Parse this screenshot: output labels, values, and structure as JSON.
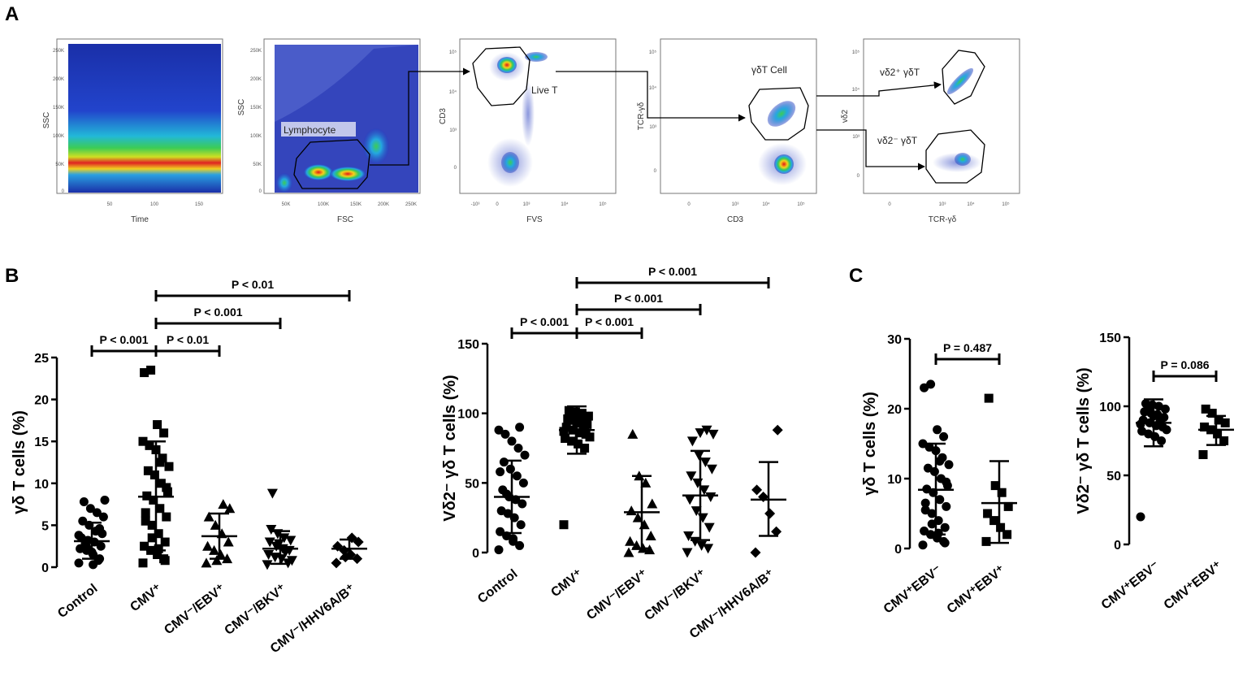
{
  "panel_labels": {
    "a": "A",
    "b": "B",
    "c": "C"
  },
  "flow_plots": [
    {
      "xlabel": "Time",
      "ylabel": "SSC",
      "xticks": [
        "50",
        "100",
        "150"
      ],
      "yticks": [
        "250K",
        "200K",
        "150K",
        "100K",
        "50K",
        "0"
      ]
    },
    {
      "xlabel": "FSC",
      "ylabel": "SSC",
      "xticks": [
        "50K",
        "100K",
        "150K",
        "200K",
        "250K"
      ],
      "yticks": [
        "250K",
        "200K",
        "150K",
        "100K",
        "50K",
        "0"
      ],
      "gate": "Lymphocyte"
    },
    {
      "xlabel": "FVS",
      "ylabel": "CD3",
      "xticks": [
        "-10³",
        "0",
        "10³",
        "10⁴",
        "10⁵"
      ],
      "yticks": [
        "10⁵",
        "10⁴",
        "10³",
        "0"
      ],
      "gate": "Live T"
    },
    {
      "xlabel": "CD3",
      "ylabel": "TCR-γδ",
      "xticks": [
        "0",
        "10³",
        "10⁴",
        "10⁵"
      ],
      "yticks": [
        "10⁵",
        "10⁴",
        "10³",
        "0"
      ],
      "gate": "γδT Cell"
    },
    {
      "xlabel": "TCR-γδ",
      "ylabel": "vδ2",
      "xticks": [
        "0",
        "10³",
        "10⁴",
        "10⁵"
      ],
      "yticks": [
        "10⁵",
        "10⁴",
        "10³",
        "0"
      ],
      "gate_pos": "vδ2⁺ γδT",
      "gate_neg": "vδ2⁻ γδT"
    }
  ],
  "chart_data": [
    {
      "id": "B1",
      "type": "scatter",
      "ylabel": "γδ T cells (%)",
      "ylim": [
        0,
        25
      ],
      "yticks": [
        0,
        5,
        10,
        15,
        20,
        25
      ],
      "categories": [
        "Control",
        "CMV⁺",
        "CMV⁻/EBV⁺",
        "CMV⁻/BKV⁺",
        "CMV⁻/HHV6A/B⁺"
      ],
      "markers": [
        "circle",
        "square",
        "triangle",
        "tri-down",
        "diamond"
      ],
      "means": [
        3.1,
        8.4,
        3.7,
        2.2,
        2.2
      ],
      "sd_upper": [
        5.3,
        15.0,
        6.4,
        4.3,
        3.3
      ],
      "sd_lower": [
        1.0,
        2.0,
        1.0,
        0.4,
        1.0
      ],
      "points": [
        [
          0.5,
          1,
          1.5,
          2,
          2.2,
          2.5,
          3,
          3.2,
          3.5,
          4,
          4.3,
          5,
          5.5,
          6,
          6.5,
          7,
          7.8,
          8,
          0.8,
          1.8,
          2.8,
          3.8,
          4.6,
          0.3,
          2.4
        ],
        [
          0.5,
          1,
          1.5,
          2,
          2.5,
          3,
          4,
          5,
          5.5,
          6,
          7,
          8,
          8.5,
          9,
          10,
          11,
          11.5,
          12,
          13,
          14,
          14.5,
          15,
          16,
          17,
          23.5,
          23.2,
          0.8,
          2.2,
          3.5,
          6.5,
          9.5,
          12.5
        ],
        [
          0.5,
          1,
          1.5,
          2,
          2.5,
          3,
          4,
          5,
          6,
          7,
          7.5,
          0.8
        ],
        [
          0.3,
          0.5,
          1,
          1.2,
          1.5,
          2,
          2.2,
          2.5,
          3,
          3.2,
          3.5,
          4,
          4.5,
          0.8,
          1.8,
          2.8,
          8.8
        ],
        [
          0.5,
          1,
          1.5,
          2,
          2.5,
          3,
          3.5,
          1.2
        ]
      ],
      "comparisons": [
        {
          "from": 0,
          "to": 1,
          "label": "P < 0.001"
        },
        {
          "from": 1,
          "to": 2,
          "label": "P < 0.01"
        },
        {
          "from": 1,
          "to": 3,
          "label": "P < 0.001"
        },
        {
          "from": 1,
          "to": 4,
          "label": "P < 0.01"
        }
      ]
    },
    {
      "id": "B2",
      "type": "scatter",
      "ylabel": "Vδ2⁻ γδ T cells (%)",
      "ylim": [
        0,
        150
      ],
      "yticks": [
        0,
        50,
        100,
        150
      ],
      "categories": [
        "Control",
        "CMV⁺",
        "CMV⁻/EBV⁺",
        "CMV⁻/BKV⁺",
        "CMV⁻/HHV6A/B⁺"
      ],
      "markers": [
        "circle",
        "square",
        "triangle",
        "tri-down",
        "diamond"
      ],
      "means": [
        40,
        88,
        29,
        41,
        38
      ],
      "sd_upper": [
        66,
        105,
        55,
        73,
        65
      ],
      "sd_lower": [
        14,
        71,
        3,
        9,
        12
      ],
      "points": [
        [
          2,
          5,
          8,
          12,
          15,
          20,
          25,
          28,
          30,
          35,
          38,
          40,
          45,
          50,
          55,
          60,
          65,
          70,
          75,
          80,
          85,
          88,
          90,
          10,
          42,
          58
        ],
        [
          20,
          75,
          78,
          80,
          82,
          85,
          86,
          88,
          90,
          92,
          94,
          95,
          96,
          98,
          100,
          101,
          102,
          83,
          89,
          93,
          97,
          87,
          91
        ],
        [
          0,
          2,
          3,
          5,
          8,
          12,
          20,
          25,
          30,
          35,
          50,
          55,
          85
        ],
        [
          0,
          3,
          5,
          8,
          12,
          18,
          25,
          30,
          38,
          40,
          45,
          50,
          55,
          60,
          65,
          70,
          80,
          85,
          88,
          86
        ],
        [
          0,
          15,
          28,
          40,
          45,
          88
        ]
      ],
      "comparisons": [
        {
          "from": 0,
          "to": 1,
          "label": "P < 0.001"
        },
        {
          "from": 1,
          "to": 2,
          "label": "P < 0.001"
        },
        {
          "from": 1,
          "to": 3,
          "label": "P < 0.001"
        },
        {
          "from": 1,
          "to": 4,
          "label": "P < 0.001"
        }
      ]
    },
    {
      "id": "C1",
      "type": "scatter",
      "ylabel": "γδ T cells (%)",
      "ylim": [
        0,
        30
      ],
      "yticks": [
        0,
        10,
        20,
        30
      ],
      "categories": [
        "CMV⁺EBV⁻",
        "CMV⁺EBV⁺"
      ],
      "markers": [
        "circle",
        "square"
      ],
      "means": [
        8.4,
        6.5
      ],
      "sd_upper": [
        15.0,
        12.5
      ],
      "sd_lower": [
        2.0,
        0.8
      ],
      "points": [
        [
          0.5,
          1,
          1.5,
          2,
          2.5,
          3,
          4,
          5,
          5.5,
          6,
          7,
          8,
          8.5,
          9,
          10,
          11,
          11.5,
          12,
          13,
          14,
          14.5,
          15,
          16,
          17,
          23.5,
          23,
          0.8,
          2.2,
          3.5,
          6.5,
          9.5,
          12.5
        ],
        [
          1,
          2,
          3,
          4,
          5,
          6,
          8,
          9,
          21.5
        ]
      ],
      "comparisons": [
        {
          "from": 0,
          "to": 1,
          "label": "P = 0.487"
        }
      ]
    },
    {
      "id": "C2",
      "type": "scatter",
      "ylabel": "Vδ2⁻ γδ T cells (%)",
      "ylim": [
        0,
        150
      ],
      "yticks": [
        0,
        50,
        100,
        150
      ],
      "categories": [
        "CMV⁺EBV⁻",
        "CMV⁺EBV⁺"
      ],
      "markers": [
        "circle",
        "square"
      ],
      "means": [
        88,
        83
      ],
      "sd_upper": [
        105,
        93
      ],
      "sd_lower": [
        71,
        72
      ],
      "points": [
        [
          20,
          75,
          78,
          80,
          82,
          85,
          86,
          88,
          90,
          92,
          94,
          95,
          96,
          98,
          100,
          101,
          102,
          83,
          89,
          93,
          97,
          87,
          91
        ],
        [
          65,
          75,
          80,
          83,
          85,
          88,
          90,
          95,
          98
        ]
      ],
      "comparisons": [
        {
          "from": 0,
          "to": 1,
          "label": "P = 0.086"
        }
      ]
    }
  ]
}
